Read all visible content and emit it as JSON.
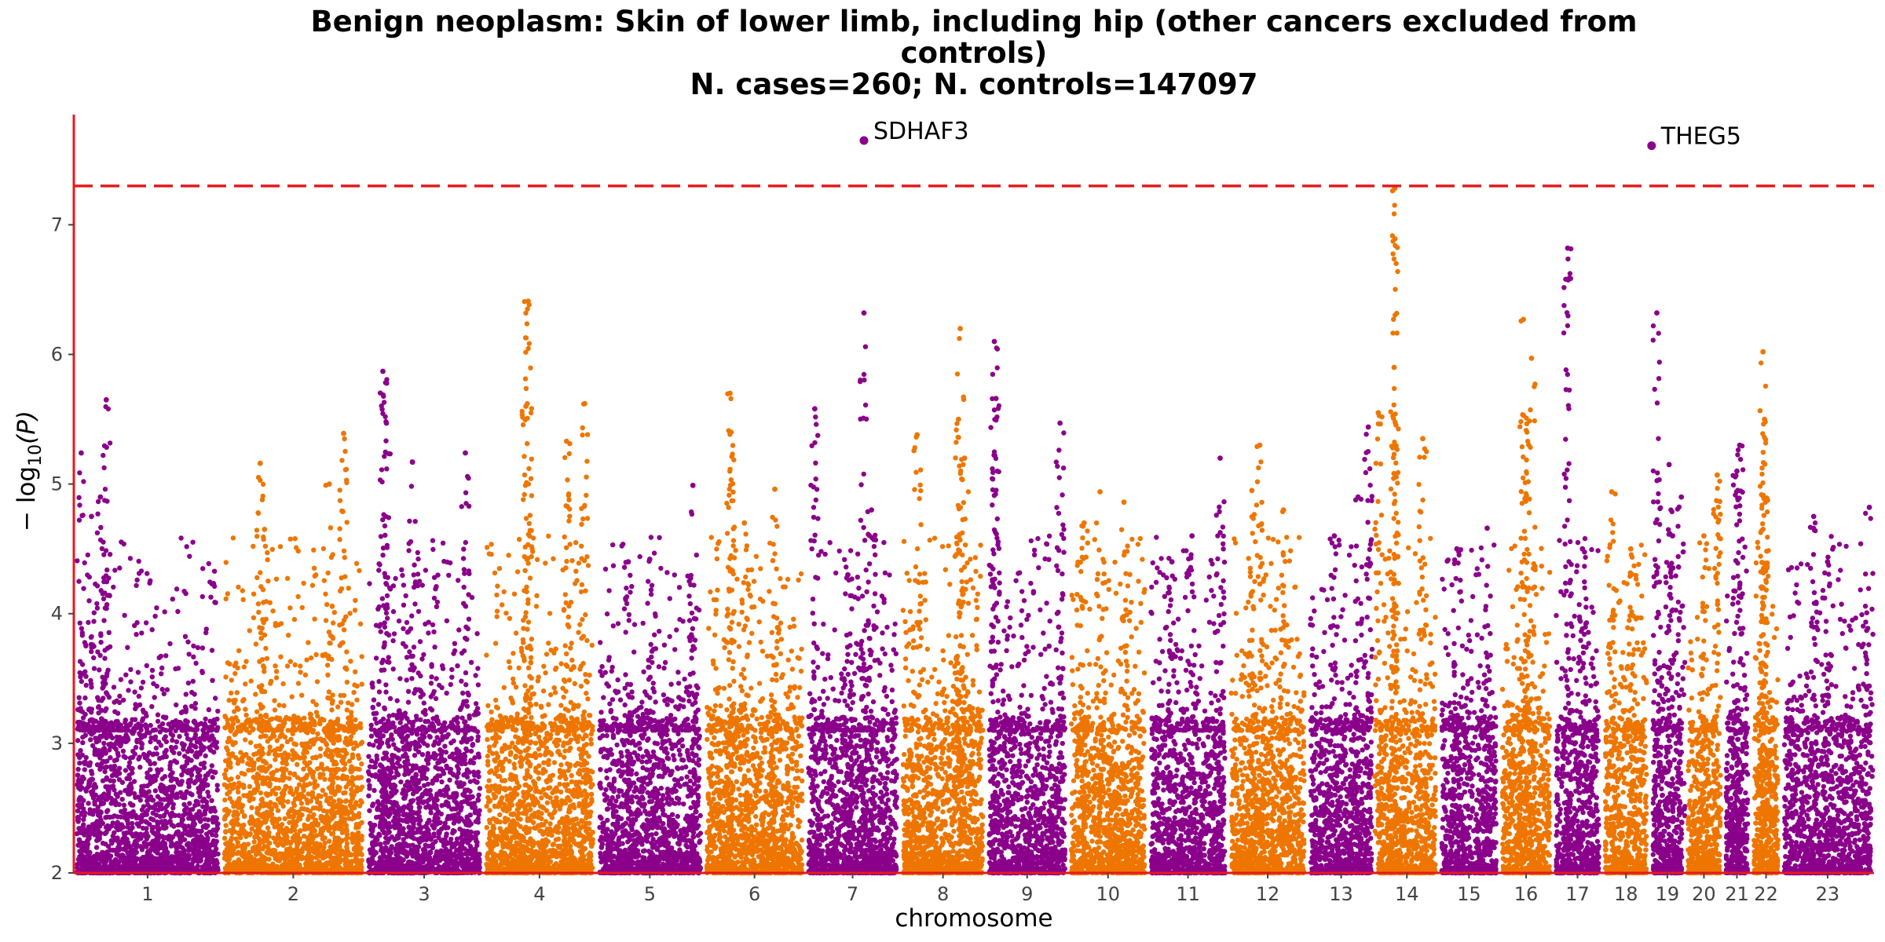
{
  "chart_data": {
    "type": "scatter",
    "title_lines": [
      "Benign neoplasm: Skin of lower limb, including hip (other cancers excluded from",
      "controls)",
      "N. cases=260; N. controls=147097"
    ],
    "xlabel": "chromosome",
    "ylabel_prefix": "− log",
    "ylabel_sub": "10",
    "ylabel_suffix": "(P)",
    "ylim": [
      2,
      7.85
    ],
    "yticks": [
      "2",
      "3",
      "4",
      "5",
      "6",
      "7"
    ],
    "significance_threshold": 7.3,
    "colors": {
      "odd": "#8B008B",
      "even": "#EE7600",
      "threshold": "#E41A1C",
      "axis": "#E41A1C"
    },
    "chromosomes": [
      {
        "label": "1",
        "length": 248,
        "color": "odd",
        "peaks": [
          [
            0.22,
            5.65
          ],
          [
            0.05,
            5.24
          ],
          [
            0.18,
            4.9
          ],
          [
            0.12,
            4.75
          ]
        ]
      },
      {
        "label": "2",
        "length": 242,
        "color": "even",
        "peaks": [
          [
            0.27,
            5.16
          ],
          [
            0.85,
            5.39
          ],
          [
            0.75,
            5.0
          ],
          [
            0.3,
            4.65
          ]
        ]
      },
      {
        "label": "3",
        "length": 198,
        "color": "odd",
        "peaks": [
          [
            0.15,
            5.87
          ],
          [
            0.18,
            5.47
          ],
          [
            0.4,
            5.17
          ],
          [
            0.85,
            5.24
          ]
        ]
      },
      {
        "label": "4",
        "length": 190,
        "color": "even",
        "peaks": [
          [
            0.4,
            6.41
          ],
          [
            0.38,
            5.6
          ],
          [
            0.74,
            5.33
          ],
          [
            0.9,
            5.62
          ]
        ]
      },
      {
        "label": "5",
        "length": 181,
        "color": "odd",
        "peaks": [
          [
            0.5,
            4.42
          ],
          [
            0.9,
            4.99
          ],
          [
            0.3,
            4.4
          ]
        ]
      },
      {
        "label": "6",
        "length": 171,
        "color": "even",
        "peaks": [
          [
            0.26,
            5.7
          ],
          [
            0.27,
            5.4
          ],
          [
            0.4,
            4.7
          ],
          [
            0.7,
            4.96
          ]
        ]
      },
      {
        "label": "7",
        "length": 159,
        "color": "odd",
        "peaks": [
          [
            0.1,
            5.58
          ],
          [
            0.62,
            6.32
          ],
          [
            0.7,
            4.8
          ],
          [
            0.45,
            4.3
          ]
        ]
      },
      {
        "label": "8",
        "length": 145,
        "color": "even",
        "peaks": [
          [
            0.2,
            5.38
          ],
          [
            0.7,
            6.2
          ],
          [
            0.68,
            5.5
          ],
          [
            0.75,
            5.2
          ]
        ]
      },
      {
        "label": "9",
        "length": 138,
        "color": "odd",
        "peaks": [
          [
            0.1,
            6.1
          ],
          [
            0.12,
            5.66
          ],
          [
            0.9,
            5.47
          ]
        ]
      },
      {
        "label": "10",
        "length": 134,
        "color": "even",
        "peaks": [
          [
            0.4,
            4.94
          ],
          [
            0.7,
            4.86
          ],
          [
            0.2,
            4.7
          ]
        ]
      },
      {
        "label": "11",
        "length": 135,
        "color": "odd",
        "peaks": [
          [
            0.9,
            5.2
          ],
          [
            0.55,
            4.6
          ],
          [
            0.3,
            4.4
          ]
        ]
      },
      {
        "label": "12",
        "length": 133,
        "color": "even",
        "peaks": [
          [
            0.4,
            5.3
          ],
          [
            0.3,
            4.95
          ],
          [
            0.7,
            4.8
          ]
        ]
      },
      {
        "label": "13",
        "length": 114,
        "color": "odd",
        "peaks": [
          [
            0.9,
            5.44
          ],
          [
            0.75,
            4.9
          ],
          [
            0.4,
            4.6
          ]
        ]
      },
      {
        "label": "14",
        "length": 107,
        "color": "even",
        "peaks": [
          [
            0.3,
            5.9
          ],
          [
            0.05,
            5.55
          ],
          [
            0.75,
            5.35
          ],
          [
            0.31,
            7.28
          ]
        ]
      },
      {
        "label": "15",
        "length": 102,
        "color": "odd",
        "peaks": [
          [
            0.8,
            4.66
          ],
          [
            0.3,
            4.5
          ]
        ]
      },
      {
        "label": "16",
        "length": 90,
        "color": "even",
        "peaks": [
          [
            0.45,
            6.27
          ],
          [
            0.6,
            5.97
          ],
          [
            0.45,
            5.53
          ]
        ]
      },
      {
        "label": "17",
        "length": 83,
        "color": "odd",
        "peaks": [
          [
            0.3,
            6.82
          ],
          [
            0.6,
            4.5
          ]
        ]
      },
      {
        "label": "18",
        "length": 80,
        "color": "even",
        "peaks": [
          [
            0.2,
            4.94
          ],
          [
            0.6,
            4.5
          ]
        ]
      },
      {
        "label": "19",
        "length": 59,
        "color": "odd",
        "peaks": [
          [
            0.2,
            6.32
          ],
          [
            0.55,
            5.15
          ],
          [
            0.9,
            4.9
          ]
        ]
      },
      {
        "label": "20",
        "length": 64,
        "color": "even",
        "peaks": [
          [
            0.85,
            5.07
          ],
          [
            0.5,
            4.6
          ]
        ]
      },
      {
        "label": "21",
        "length": 47,
        "color": "odd",
        "peaks": [
          [
            0.6,
            5.3
          ],
          [
            0.5,
            5.1
          ]
        ]
      },
      {
        "label": "22",
        "length": 51,
        "color": "even",
        "peaks": [
          [
            0.4,
            6.02
          ],
          [
            0.45,
            5.5
          ],
          [
            0.42,
            4.9
          ]
        ]
      },
      {
        "label": "23",
        "length": 156,
        "color": "odd",
        "peaks": [
          [
            0.35,
            4.75
          ],
          [
            0.95,
            4.82
          ],
          [
            0.5,
            4.4
          ]
        ]
      }
    ],
    "highlights": [
      {
        "label": "SDHAF3",
        "chromosome": "7",
        "position": 0.62,
        "value": 7.65,
        "color": "#8B008B"
      },
      {
        "label": "THEG5",
        "chromosome": "19",
        "position": 0.05,
        "value": 7.61,
        "color": "#8B008B"
      }
    ]
  }
}
